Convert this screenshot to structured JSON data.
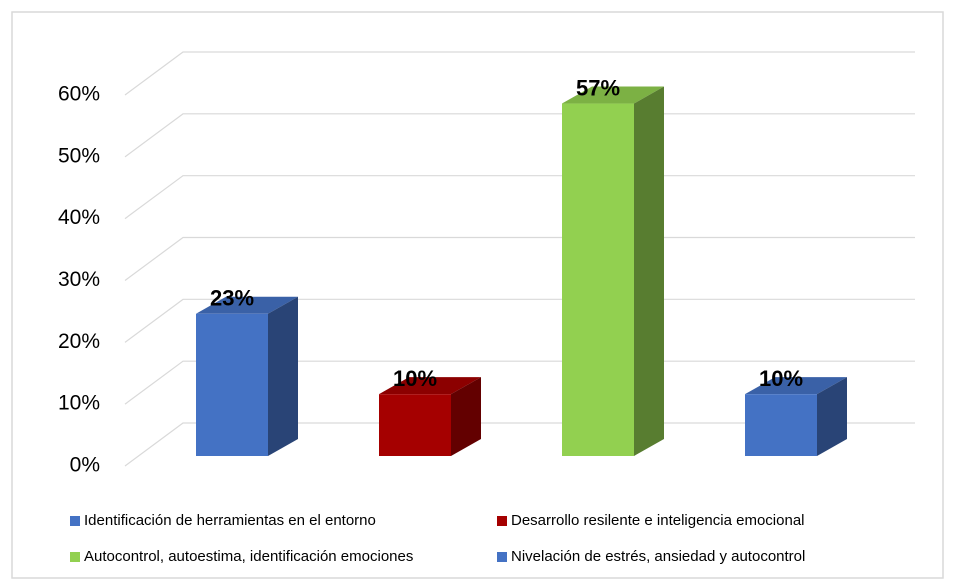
{
  "chart_data": {
    "type": "bar3d",
    "series": [
      {
        "name": "Identificación de herramientas en el entorno",
        "color": "#4472c4",
        "values": [
          23
        ],
        "value_labels": [
          "23%"
        ]
      },
      {
        "name": "Desarrollo resilente e inteligencia emocional",
        "color": "#a50000",
        "values": [
          10
        ],
        "value_labels": [
          "10%"
        ]
      },
      {
        "name": "Autocontrol, autoestima, identificación emociones",
        "color": "#92d050",
        "values": [
          57
        ],
        "value_labels": [
          "57%"
        ]
      },
      {
        "name": "Nivelación de estrés, ansiedad y autocontrol",
        "color": "#4472c4",
        "values": [
          10
        ],
        "value_labels": [
          "10%"
        ]
      }
    ],
    "ylim": [
      0,
      60
    ],
    "yticks": [
      {
        "value": 0,
        "label": "0%"
      },
      {
        "value": 10,
        "label": "10%"
      },
      {
        "value": 20,
        "label": "20%"
      },
      {
        "value": 30,
        "label": "30%"
      },
      {
        "value": 40,
        "label": "40%"
      },
      {
        "value": 50,
        "label": "50%"
      },
      {
        "value": 60,
        "label": "60%"
      }
    ],
    "grid": true
  }
}
